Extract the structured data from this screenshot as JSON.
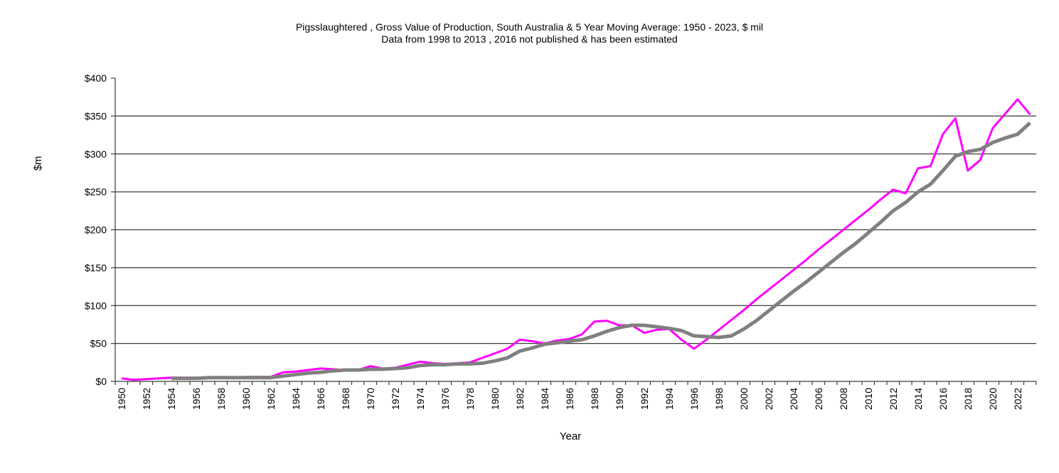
{
  "chart_data": {
    "type": "line",
    "title": "Pigsslaughtered , Gross Value of Production, South Australia & 5 Year Moving Average: 1950 - 2023, $ mil",
    "subtitle": "Data from 1998 to 2013 , 2016 not published & has been estimated",
    "xlabel": "Year",
    "ylabel": "$m",
    "ylim": [
      0,
      400
    ],
    "yticks": [
      0,
      50,
      100,
      150,
      200,
      250,
      300,
      350,
      400
    ],
    "ytick_labels": [
      "$0",
      "$50",
      "$100",
      "$150",
      "$200",
      "$250",
      "$300",
      "$350",
      "$400"
    ],
    "grid": true,
    "legend": "none",
    "x": [
      1950,
      1951,
      1952,
      1953,
      1954,
      1955,
      1956,
      1957,
      1958,
      1959,
      1960,
      1961,
      1962,
      1963,
      1964,
      1965,
      1966,
      1967,
      1968,
      1969,
      1970,
      1971,
      1972,
      1973,
      1974,
      1975,
      1976,
      1977,
      1978,
      1979,
      1980,
      1981,
      1982,
      1983,
      1984,
      1985,
      1986,
      1987,
      1988,
      1989,
      1990,
      1991,
      1992,
      1993,
      1994,
      1995,
      1996,
      1997,
      1998,
      1999,
      2000,
      2001,
      2002,
      2003,
      2004,
      2005,
      2006,
      2007,
      2008,
      2009,
      2010,
      2011,
      2012,
      2013,
      2014,
      2015,
      2016,
      2017,
      2018,
      2019,
      2020,
      2021,
      2022,
      2023
    ],
    "xtick_labels": [
      "1950",
      "1952",
      "1954",
      "1956",
      "1958",
      "1960",
      "1962",
      "1964",
      "1966",
      "1968",
      "1970",
      "1972",
      "1974",
      "1976",
      "1978",
      "1980",
      "1982",
      "1984",
      "1986",
      "1988",
      "1990",
      "1992",
      "1994",
      "1996",
      "1998",
      "2000",
      "2002",
      "2004",
      "2006",
      "2008",
      "2010",
      "2012",
      "2014",
      "2016",
      "2018",
      "2020",
      "2022"
    ],
    "series": [
      {
        "name": "Gross Value of Production",
        "color": "#FF00FF",
        "values": [
          4,
          2,
          3,
          4,
          5,
          5,
          5,
          5,
          5,
          5,
          6,
          6,
          6,
          12,
          13,
          15,
          17,
          16,
          15,
          15,
          20,
          17,
          18,
          22,
          26,
          24,
          23,
          24,
          25,
          31,
          37,
          43,
          55,
          53,
          50,
          54,
          56,
          62,
          79,
          80,
          74,
          74,
          64,
          68,
          69,
          55,
          43,
          55,
          68,
          81,
          94,
          108,
          121,
          134,
          147,
          160,
          174,
          187,
          200,
          213,
          226,
          240,
          253,
          248,
          281,
          284,
          326,
          347,
          278,
          292,
          334,
          353,
          372,
          352
        ]
      },
      {
        "name": "5 Year Moving Average",
        "color": "#808080",
        "values": [
          null,
          null,
          null,
          null,
          4,
          4,
          4,
          5,
          5,
          5,
          5,
          5,
          5,
          7,
          9,
          11,
          12,
          14,
          15,
          15,
          16,
          16,
          17,
          18,
          21,
          22,
          22,
          23,
          23,
          24,
          27,
          31,
          40,
          44,
          49,
          51,
          53,
          55,
          60,
          66,
          71,
          74,
          74,
          72,
          70,
          67,
          60,
          59,
          58,
          60,
          69,
          80,
          93,
          106,
          119,
          131,
          144,
          157,
          170,
          182,
          196,
          210,
          225,
          236,
          250,
          260,
          278,
          297,
          303,
          306,
          315,
          321,
          326,
          341
        ]
      }
    ]
  }
}
